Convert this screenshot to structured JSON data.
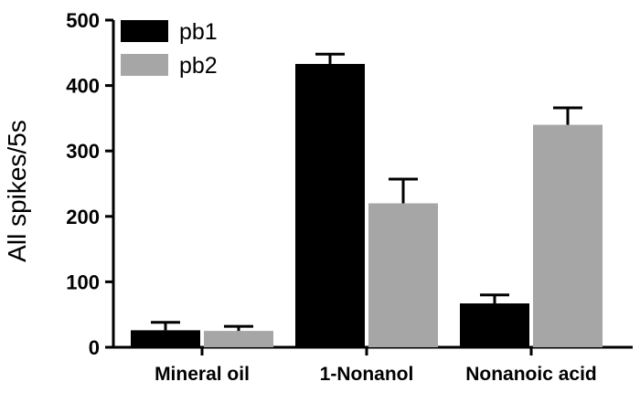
{
  "chart_data": {
    "type": "bar",
    "title": "",
    "xlabel": "",
    "ylabel": "All spikes/5s",
    "ylim": [
      0,
      500
    ],
    "yticks": [
      0,
      100,
      200,
      300,
      400,
      500
    ],
    "categories": [
      "Mineral oil",
      "1-Nonanol",
      "Nonanoic acid"
    ],
    "series": [
      {
        "name": "pb1",
        "color": "#000000",
        "values": [
          26,
          433,
          67
        ],
        "errors": [
          12,
          15,
          13
        ]
      },
      {
        "name": "pb2",
        "color": "#a6a6a6",
        "values": [
          25,
          220,
          340
        ],
        "errors": [
          7,
          37,
          26
        ]
      }
    ],
    "error_bars": "upper",
    "grid": false,
    "legend": "top-left"
  }
}
